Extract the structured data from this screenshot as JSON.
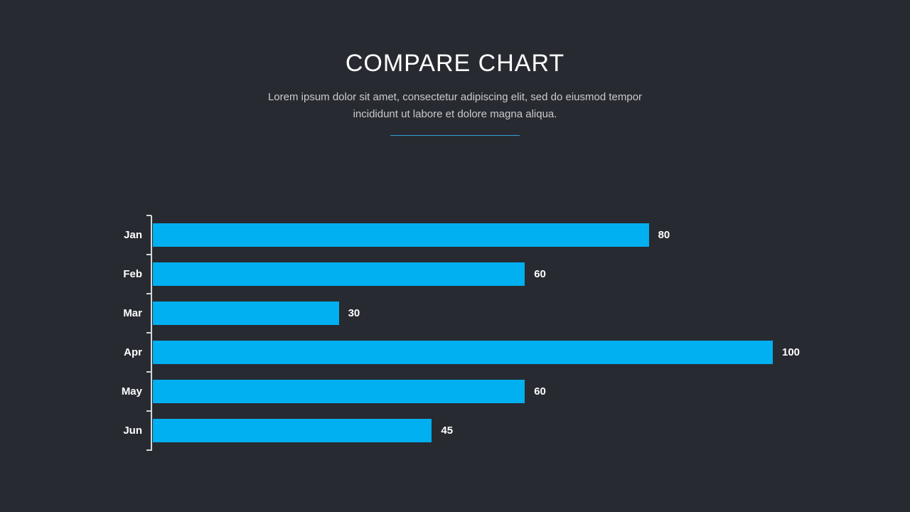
{
  "header": {
    "title": "COMPARE CHART",
    "subtitle": "Lorem ipsum dolor sit amet, consectetur adipiscing elit, sed do eiusmod tempor incididunt ut labore et dolore magna aliqua."
  },
  "chart_data": {
    "type": "bar",
    "orientation": "horizontal",
    "title": "COMPARE CHART",
    "categories": [
      "Jan",
      "Feb",
      "Mar",
      "Apr",
      "May",
      "Jun"
    ],
    "values": [
      80,
      60,
      30,
      100,
      60,
      45
    ],
    "xlabel": "",
    "ylabel": "",
    "xlim": [
      0,
      100
    ],
    "grid": false,
    "legend": false,
    "value_labels_shown": true
  },
  "colors": {
    "background": "#282a31",
    "bar": "#00b0f0",
    "accent_line": "#2f9fd6",
    "title_text": "#ffffff",
    "subtitle_text": "#c8cacd",
    "axis": "#d6d7d9"
  }
}
